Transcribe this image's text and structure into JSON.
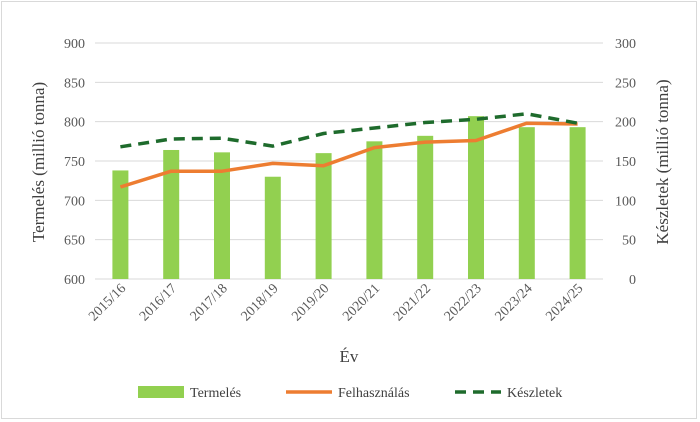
{
  "chart_data": {
    "type": "bar",
    "categories": [
      "2015/16",
      "2016/17",
      "2017/18",
      "2018/19",
      "2019/20",
      "2020/21",
      "2021/22",
      "2022/23",
      "2023/24",
      "2024/25"
    ],
    "series": [
      {
        "name": "Termelés",
        "type": "bar",
        "axis": "left",
        "color": "#92d050",
        "values": [
          738,
          764,
          761,
          730,
          760,
          775,
          782,
          807,
          793,
          793
        ]
      },
      {
        "name": "Felhasználás",
        "type": "line",
        "axis": "left",
        "color": "#ed7d31",
        "dash": "solid",
        "values": [
          717,
          737,
          737,
          747,
          744,
          767,
          774,
          776,
          798,
          797
        ]
      },
      {
        "name": "Készletek",
        "type": "line",
        "axis": "right",
        "color": "#1e6b2c",
        "dash": "dashed",
        "values": [
          168,
          178,
          179,
          169,
          185,
          192,
          199,
          203,
          210,
          198
        ]
      }
    ],
    "xlabel": "Év",
    "ylabel": "Termelés (millió tonna)",
    "y2label": "Készletek (millió tonna)",
    "ylim": [
      600,
      900
    ],
    "y2lim": [
      0,
      300
    ],
    "yticks": [
      "600",
      "650",
      "700",
      "750",
      "800",
      "850",
      "900"
    ],
    "y2ticks": [
      "0",
      "50",
      "100",
      "150",
      "200",
      "250",
      "300"
    ],
    "grid": true,
    "legend_position": "bottom"
  }
}
